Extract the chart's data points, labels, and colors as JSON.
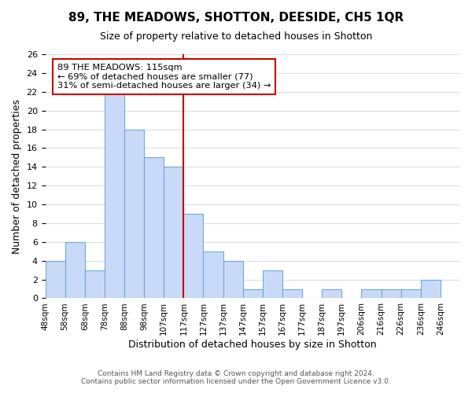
{
  "title": "89, THE MEADOWS, SHOTTON, DEESIDE, CH5 1QR",
  "subtitle": "Size of property relative to detached houses in Shotton",
  "xlabel": "Distribution of detached houses by size in Shotton",
  "ylabel": "Number of detached properties",
  "bin_labels": [
    "48sqm",
    "58sqm",
    "68sqm",
    "78sqm",
    "88sqm",
    "98sqm",
    "107sqm",
    "117sqm",
    "127sqm",
    "137sqm",
    "147sqm",
    "157sqm",
    "167sqm",
    "177sqm",
    "187sqm",
    "197sqm",
    "206sqm",
    "216sqm",
    "226sqm",
    "236sqm",
    "246sqm"
  ],
  "bin_counts": [
    4,
    6,
    3,
    22,
    18,
    15,
    14,
    9,
    5,
    4,
    1,
    3,
    1,
    0,
    1,
    0,
    1,
    1,
    1,
    2
  ],
  "bar_color": "#c9daf8",
  "bar_edge_color": "#6fa8dc",
  "vline_position": 7.0,
  "vline_color": "#cc0000",
  "annotation_text": "89 THE MEADOWS: 115sqm\n← 69% of detached houses are smaller (77)\n31% of semi-detached houses are larger (34) →",
  "annotation_box_color": "#ffffff",
  "annotation_box_edge": "#cc0000",
  "ylim": [
    0,
    26
  ],
  "yticks": [
    0,
    2,
    4,
    6,
    8,
    10,
    12,
    14,
    16,
    18,
    20,
    22,
    24,
    26
  ],
  "footer_line1": "Contains HM Land Registry data © Crown copyright and database right 2024.",
  "footer_line2": "Contains public sector information licensed under the Open Government Licence v3.0.",
  "background_color": "#ffffff",
  "grid_color": "#dddddd"
}
